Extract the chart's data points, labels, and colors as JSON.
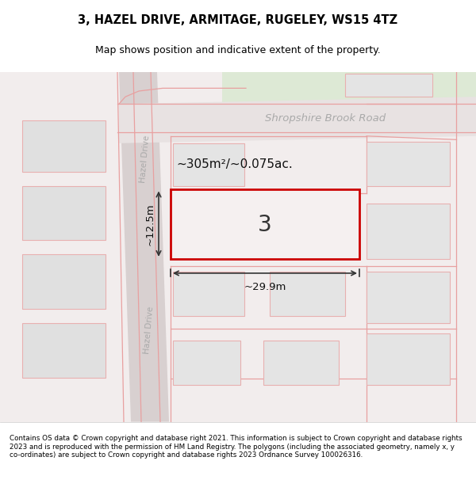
{
  "title_line1": "3, HAZEL DRIVE, ARMITAGE, RUGELEY, WS15 4TZ",
  "title_line2": "Map shows position and indicative extent of the property.",
  "footer_text": "Contains OS data © Crown copyright and database right 2021. This information is subject to Crown copyright and database rights 2023 and is reproduced with the permission of HM Land Registry. The polygons (including the associated geometry, namely x, y co-ordinates) are subject to Crown copyright and database rights 2023 Ordnance Survey 100026316.",
  "road_label": "Shropshire Brook Road",
  "road_label2_upper": "Hazel Drive",
  "road_label2_lower": "Hazel Drive",
  "area_label": "~305m²/~0.075ac.",
  "width_label": "~29.9m",
  "height_label": "~12.5m",
  "plot_number": "3",
  "bg_map_color": "#f2eded",
  "road_line_color": "#e8a0a0",
  "building_fill": "#e0e0e0",
  "building_stroke": "#e8b0b0",
  "plot_stroke": "#cc0000",
  "plot_fill": "#f5f0f0",
  "green_color": "#dde9d5",
  "hazel_road_color": "#d8d0d0",
  "upper_road_color": "#e8e2e2"
}
